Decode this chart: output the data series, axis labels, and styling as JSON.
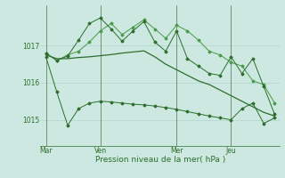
{
  "background_color": "#cce8e0",
  "plot_bg_color": "#cce8e0",
  "grid_color": "#aad0c8",
  "line_color_dark": "#2d6e2d",
  "line_color_light": "#4a9a4a",
  "xlabel": "Pression niveau de la mer( hPa )",
  "yticks": [
    1015,
    1016,
    1017
  ],
  "ylim": [
    1014.3,
    1018.1
  ],
  "xlim": [
    -0.5,
    21.5
  ],
  "xtick_positions": [
    0,
    5,
    12,
    17
  ],
  "xtick_labels": [
    "Mar",
    "Ven",
    "Mer",
    "Jeu"
  ],
  "vlines": [
    0,
    5,
    12,
    17
  ],
  "series1_x": [
    0,
    1,
    2,
    3,
    4,
    5,
    6,
    7,
    8,
    9,
    10,
    11,
    12,
    13,
    14,
    15,
    16,
    17,
    18,
    19,
    20,
    21
  ],
  "series1": [
    1016.75,
    1016.65,
    1016.65,
    1016.68,
    1016.7,
    1016.73,
    1016.76,
    1016.8,
    1016.83,
    1016.86,
    1016.7,
    1016.5,
    1016.35,
    1016.2,
    1016.05,
    1015.95,
    1015.8,
    1015.65,
    1015.5,
    1015.35,
    1015.2,
    1015.1
  ],
  "series2_x": [
    0,
    1,
    2,
    3,
    4,
    5,
    6,
    7,
    8,
    9,
    10,
    11,
    12,
    13,
    14,
    15,
    16,
    17,
    18,
    19,
    20,
    21
  ],
  "series2": [
    1016.8,
    1016.6,
    1016.75,
    1016.85,
    1017.1,
    1017.4,
    1017.6,
    1017.3,
    1017.5,
    1017.7,
    1017.45,
    1017.2,
    1017.55,
    1017.4,
    1017.15,
    1016.85,
    1016.75,
    1016.55,
    1016.45,
    1016.05,
    1015.95,
    1015.45
  ],
  "series3_x": [
    0,
    1,
    2,
    3,
    4,
    5,
    6,
    7,
    8,
    9,
    10,
    11,
    12,
    13,
    14,
    15,
    16,
    17,
    18,
    19,
    20,
    21
  ],
  "series3": [
    1016.8,
    1016.6,
    1016.72,
    1017.15,
    1017.6,
    1017.75,
    1017.45,
    1017.12,
    1017.4,
    1017.65,
    1017.1,
    1016.85,
    1017.4,
    1016.65,
    1016.45,
    1016.25,
    1016.2,
    1016.7,
    1016.25,
    1016.65,
    1015.9,
    1015.15
  ],
  "series4_x": [
    0,
    1,
    2,
    3,
    4,
    5,
    6,
    7,
    8,
    9,
    10,
    11,
    12,
    13,
    14,
    15,
    16,
    17,
    18,
    19,
    20,
    21
  ],
  "series4": [
    1016.7,
    1015.75,
    1014.85,
    1015.3,
    1015.45,
    1015.5,
    1015.48,
    1015.45,
    1015.42,
    1015.4,
    1015.37,
    1015.33,
    1015.28,
    1015.22,
    1015.16,
    1015.1,
    1015.05,
    1015.0,
    1015.3,
    1015.45,
    1014.9,
    1015.05
  ]
}
